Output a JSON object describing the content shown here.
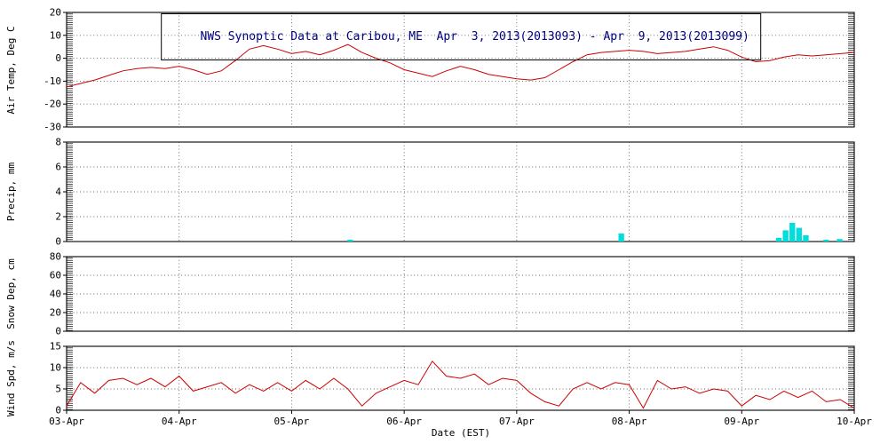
{
  "chart": {
    "title": "NWS Synoptic Data at Caribou, ME  Apr  3, 2013(2013093) - Apr  9, 2013(2013099)",
    "title_color": "#000080",
    "background": "#ffffff"
  },
  "x_axis": {
    "label": "Date (EST)",
    "range_days": [
      0,
      7
    ],
    "tick_labels": [
      "03-Apr",
      "04-Apr",
      "05-Apr",
      "06-Apr",
      "07-Apr",
      "08-Apr",
      "09-Apr",
      "10-Apr"
    ],
    "grid": "dotted vertical lines at each day"
  },
  "chart_data": [
    {
      "type": "line",
      "panel": "air-temp",
      "ylabel": "Air Temp, Deg C",
      "ylim": [
        -30,
        20
      ],
      "yticks": [
        20,
        10,
        0,
        -10,
        -20,
        -30
      ],
      "color": "#cc0000",
      "x_start": 0,
      "x_step_days": 0.125,
      "values": [
        -12.5,
        -11,
        -9.5,
        -7.5,
        -5.5,
        -4.5,
        -4,
        -4.5,
        -3.5,
        -5,
        -7,
        -5.5,
        -1,
        4,
        5.5,
        4,
        2,
        3,
        1.5,
        3.5,
        6,
        2.5,
        0,
        -2,
        -5,
        -6.5,
        -8,
        -5.5,
        -3.5,
        -5,
        -7,
        -8,
        -9,
        -9.5,
        -8.5,
        -5,
        -1.5,
        1.5,
        2.5,
        3,
        3.5,
        3,
        2,
        2.5,
        3,
        4,
        5,
        3.5,
        0.5,
        -1.5,
        -1,
        0.5,
        1.5,
        1,
        1.5,
        2,
        2.5
      ]
    },
    {
      "type": "bar",
      "panel": "precip",
      "ylabel": "Precip, mm",
      "ylim": [
        0,
        8
      ],
      "yticks": [
        8,
        6,
        4,
        2,
        0
      ],
      "color": "#00dddd",
      "bar_width_days": 0.05,
      "bars": [
        {
          "x": 2.52,
          "v": 0.15
        },
        {
          "x": 4.93,
          "v": 0.65
        },
        {
          "x": 6.33,
          "v": 0.3
        },
        {
          "x": 6.39,
          "v": 0.9
        },
        {
          "x": 6.45,
          "v": 1.5
        },
        {
          "x": 6.51,
          "v": 1.1
        },
        {
          "x": 6.57,
          "v": 0.5
        },
        {
          "x": 6.75,
          "v": 0.15
        },
        {
          "x": 6.87,
          "v": 0.2
        }
      ]
    },
    {
      "type": "line",
      "panel": "snow-depth",
      "ylabel": "Snow Dep,  cm",
      "ylim": [
        0,
        80
      ],
      "yticks": [
        80,
        60,
        40,
        20,
        0
      ],
      "color": "#00dddd",
      "x_start": 0,
      "x_step_days": 0.125,
      "values": []
    },
    {
      "type": "line",
      "panel": "wind-speed",
      "ylabel": "Wind Spd, m/s",
      "ylim": [
        0,
        15
      ],
      "yticks": [
        15,
        10,
        5,
        0
      ],
      "color": "#cc0000",
      "x_start": 0,
      "x_step_days": 0.125,
      "values": [
        1,
        6.5,
        4,
        7,
        7.5,
        6,
        7.5,
        5.5,
        8,
        4.5,
        5.5,
        6.5,
        4,
        6,
        4.5,
        6.5,
        4.5,
        7,
        5,
        7.5,
        5,
        1,
        4,
        5.5,
        7,
        6,
        11.5,
        8,
        7.5,
        8.5,
        6,
        7.5,
        7,
        4,
        2,
        1,
        5,
        6.5,
        5,
        6.5,
        6,
        0.5,
        7,
        5,
        5.5,
        4,
        5,
        4.5,
        1,
        3.5,
        2.5,
        4.5,
        3,
        4.5,
        2,
        2.5,
        0.5
      ]
    }
  ]
}
